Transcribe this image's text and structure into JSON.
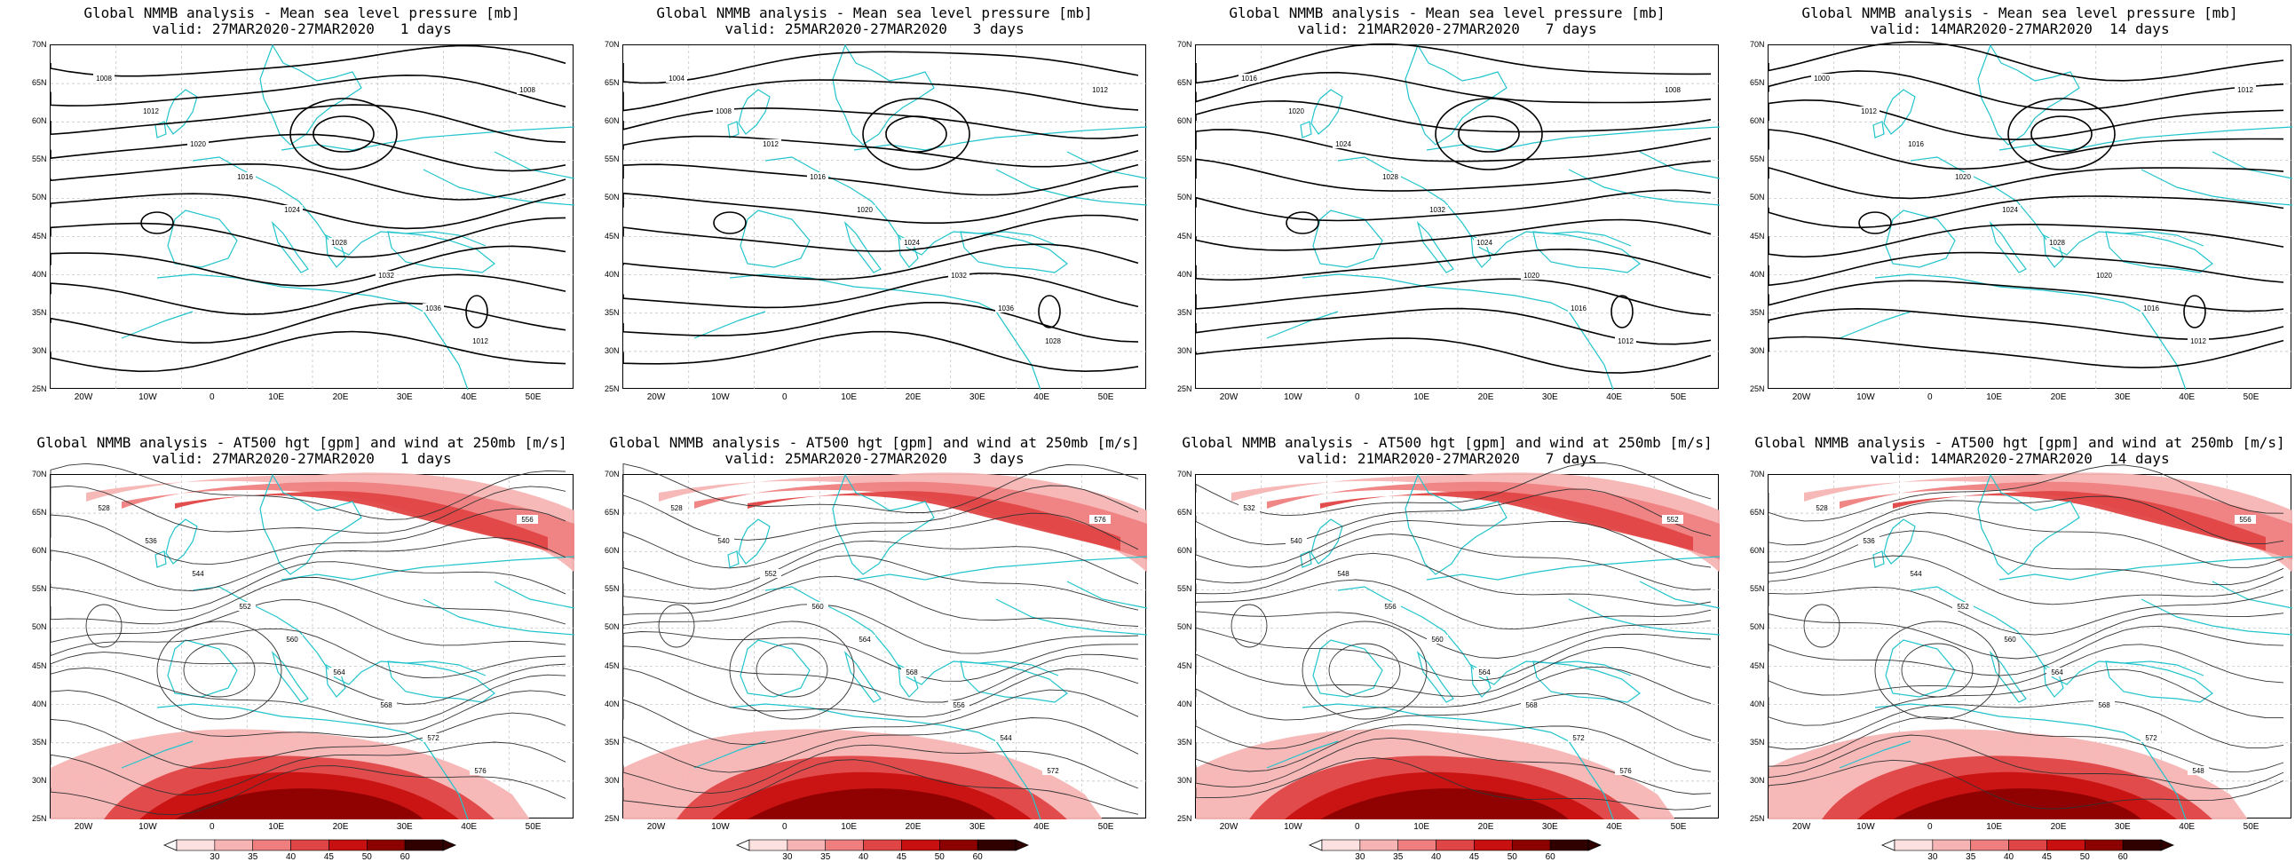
{
  "axes": {
    "y_ticks": [
      "70N",
      "65N",
      "60N",
      "55N",
      "50N",
      "45N",
      "40N",
      "35N",
      "30N",
      "25N"
    ],
    "x_ticks": [
      "20W",
      "10W",
      "0",
      "10E",
      "20E",
      "30E",
      "40E",
      "50E"
    ]
  },
  "colors": {
    "coast": "#22c4cc",
    "contour": "#000000",
    "wind_scale": [
      "#fde0e0",
      "#f7b4b4",
      "#ef7f7f",
      "#e04545",
      "#c81010",
      "#8c0000",
      "#300000"
    ]
  },
  "colorbar_ticks": [
    "30",
    "35",
    "40",
    "45",
    "50",
    "60"
  ],
  "panels": [
    {
      "id": "mslp-1d",
      "title": "Global NMMB analysis - Mean sea level pressure [mb]",
      "valid": "valid: 27MAR2020-27MAR2020   1 days",
      "labels": [
        "1008",
        "1012",
        "1020",
        "1016",
        "1024",
        "1028",
        "1032",
        "1036",
        "1012",
        "1008"
      ]
    },
    {
      "id": "mslp-3d",
      "title": "Global NMMB analysis - Mean sea level pressure [mb]",
      "valid": "valid: 25MAR2020-27MAR2020   3 days",
      "labels": [
        "1004",
        "1008",
        "1012",
        "1016",
        "1020",
        "1024",
        "1032",
        "1036",
        "1028",
        "1012"
      ]
    },
    {
      "id": "mslp-7d",
      "title": "Global NMMB analysis - Mean sea level pressure [mb]",
      "valid": "valid: 21MAR2020-27MAR2020   7 days",
      "labels": [
        "1016",
        "1020",
        "1024",
        "1028",
        "1032",
        "1024",
        "1020",
        "1016",
        "1012",
        "1008"
      ]
    },
    {
      "id": "mslp-14d",
      "title": "Global NMMB analysis - Mean sea level pressure [mb]",
      "valid": "valid: 14MAR2020-27MAR2020  14 days",
      "labels": [
        "1000",
        "1012",
        "1016",
        "1020",
        "1024",
        "1028",
        "1020",
        "1016",
        "1012",
        "1012"
      ]
    },
    {
      "id": "z500-1d",
      "title": "Global NMMB analysis - AT500 hgt [gpm] and wind at 250mb [m/s]",
      "valid": "valid: 27MAR2020-27MAR2020   1 days",
      "labels": [
        "528",
        "536",
        "544",
        "552",
        "560",
        "564",
        "568",
        "572",
        "576",
        "556"
      ]
    },
    {
      "id": "z500-3d",
      "title": "Global NMMB analysis - AT500 hgt [gpm] and wind at 250mb [m/s]",
      "valid": "valid: 25MAR2020-27MAR2020   3 days",
      "labels": [
        "528",
        "540",
        "552",
        "560",
        "564",
        "568",
        "556",
        "544",
        "572",
        "576"
      ]
    },
    {
      "id": "z500-7d",
      "title": "Global NMMB analysis - AT500 hgt [gpm] and wind at 250mb [m/s]",
      "valid": "valid: 21MAR2020-27MAR2020   7 days",
      "labels": [
        "532",
        "540",
        "548",
        "556",
        "560",
        "564",
        "568",
        "572",
        "576",
        "552"
      ]
    },
    {
      "id": "z500-14d",
      "title": "Global NMMB analysis - AT500 hgt [gpm] and wind at 250mb [m/s]",
      "valid": "valid: 14MAR2020-27MAR2020  14 days",
      "labels": [
        "528",
        "536",
        "544",
        "552",
        "560",
        "564",
        "568",
        "572",
        "548",
        "556"
      ]
    }
  ]
}
